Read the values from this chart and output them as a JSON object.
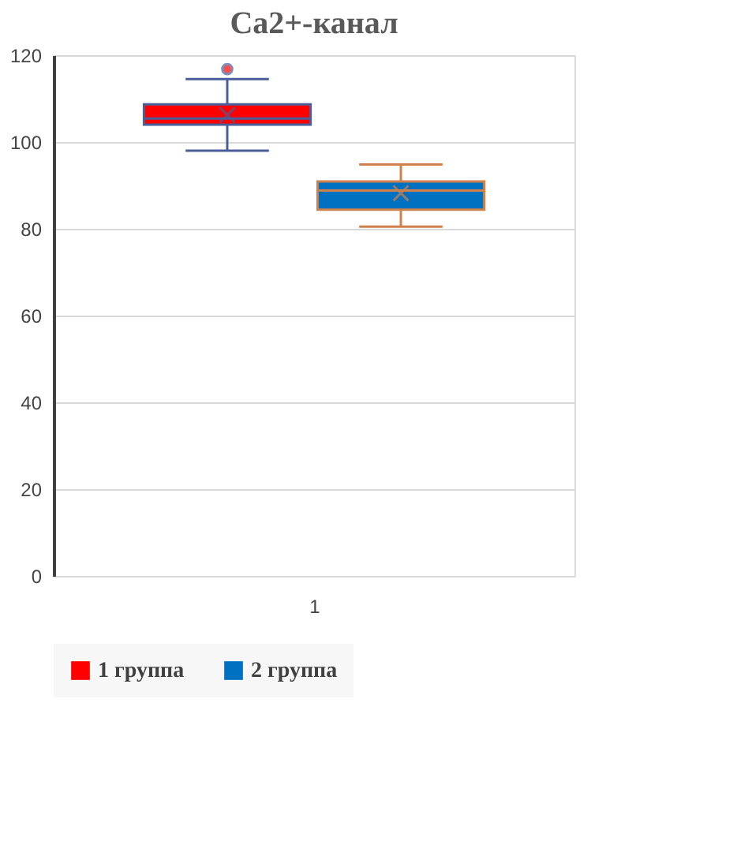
{
  "chart_data": {
    "type": "box",
    "title": "Ca2+-канал",
    "categories": [
      "1"
    ],
    "series": [
      {
        "name": "1 группа",
        "color": "#ff0000",
        "boxes": [
          {
            "low": 98,
            "q1": 104,
            "median": 105.4,
            "q3": 108.7,
            "high": 114.5,
            "mean": 106.2,
            "outliers": [
              116.8
            ]
          }
        ]
      },
      {
        "name": "2 группа",
        "color": "#0070c0",
        "boxes": [
          {
            "low": 80.5,
            "q1": 84.4,
            "median": 88.8,
            "q3": 90.9,
            "high": 94.8,
            "mean": 88.2
          }
        ]
      }
    ],
    "ylim": [
      0,
      120
    ],
    "yticks": [
      0,
      20,
      40,
      60,
      80,
      100,
      120
    ],
    "grid": "y",
    "legend": "bottom"
  }
}
